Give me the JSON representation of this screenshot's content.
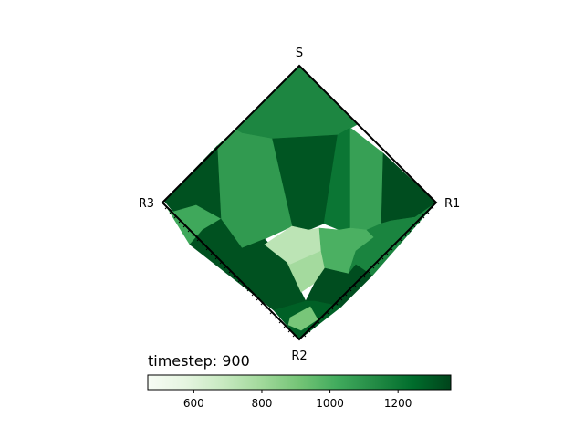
{
  "chart_data": {
    "type": "heatmap",
    "title": "",
    "corner_labels": {
      "top": "S",
      "right": "R1",
      "bottom": "R2",
      "left": "R3"
    },
    "annotation": "timestep: 900",
    "colorbar": {
      "colormap": "Greens",
      "range": [
        465,
        1355
      ],
      "ticks": [
        600,
        800,
        1000,
        1200
      ],
      "tick_labels": [
        "600",
        "800",
        "1000",
        "1200"
      ]
    },
    "cells": [
      {
        "id": "top-cap",
        "value": 1150
      },
      {
        "id": "upper-center",
        "value": 1310
      },
      {
        "id": "center-right-stripe",
        "value": 1210
      },
      {
        "id": "right-block",
        "value": 1060
      },
      {
        "id": "far-right",
        "value": 1330
      },
      {
        "id": "left-big",
        "value": 1080
      },
      {
        "id": "left-top",
        "value": 1320
      },
      {
        "id": "left-mid",
        "value": 1030
      },
      {
        "id": "lower-left",
        "value": 1320
      },
      {
        "id": "light-center",
        "value": 720
      },
      {
        "id": "light-lower",
        "value": 790
      },
      {
        "id": "mid-right",
        "value": 1000
      },
      {
        "id": "right-lower",
        "value": 1160
      },
      {
        "id": "bottom-center",
        "value": 1330
      },
      {
        "id": "bottom-tip",
        "value": 1280
      },
      {
        "id": "bottom-light",
        "value": 900
      }
    ]
  }
}
